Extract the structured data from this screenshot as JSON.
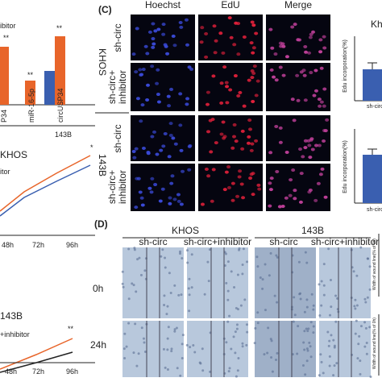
{
  "panel_a": {
    "legend": "ibitor",
    "stars": [
      "**",
      "**",
      "**"
    ],
    "x_labels": [
      "P34",
      "miR-16-5p",
      "circUSP34"
    ],
    "group": "143B"
  },
  "panel_b": {
    "title": "KHOS",
    "legend": "itor",
    "star": "*",
    "x_labels": [
      "48h",
      "72h",
      "96h"
    ]
  },
  "panel_b2": {
    "title": "143B",
    "legend": "+inhibitor",
    "star": "**",
    "x_labels": [
      "48h",
      "72h",
      "96h"
    ]
  },
  "panel_c": {
    "label": "(C)",
    "columns": [
      "Hoechst",
      "EdU",
      "Merge"
    ],
    "cell_lines": [
      "KHOS",
      "143B"
    ],
    "rows": [
      "sh-circ",
      "sh-circ+",
      "inhibitor"
    ],
    "side_chart": {
      "title": "Kh",
      "y_label": "Edu incorporation(%)",
      "x_label": "sh-circ"
    }
  },
  "panel_d": {
    "label": "(D)",
    "cell_lines": [
      "KHOS",
      "143B"
    ],
    "conditions": [
      "sh-circ",
      "sh-circ+inhibitor"
    ],
    "times": [
      "0h",
      "24h"
    ],
    "y_label": "Width of wound line(% of 0h)"
  }
}
